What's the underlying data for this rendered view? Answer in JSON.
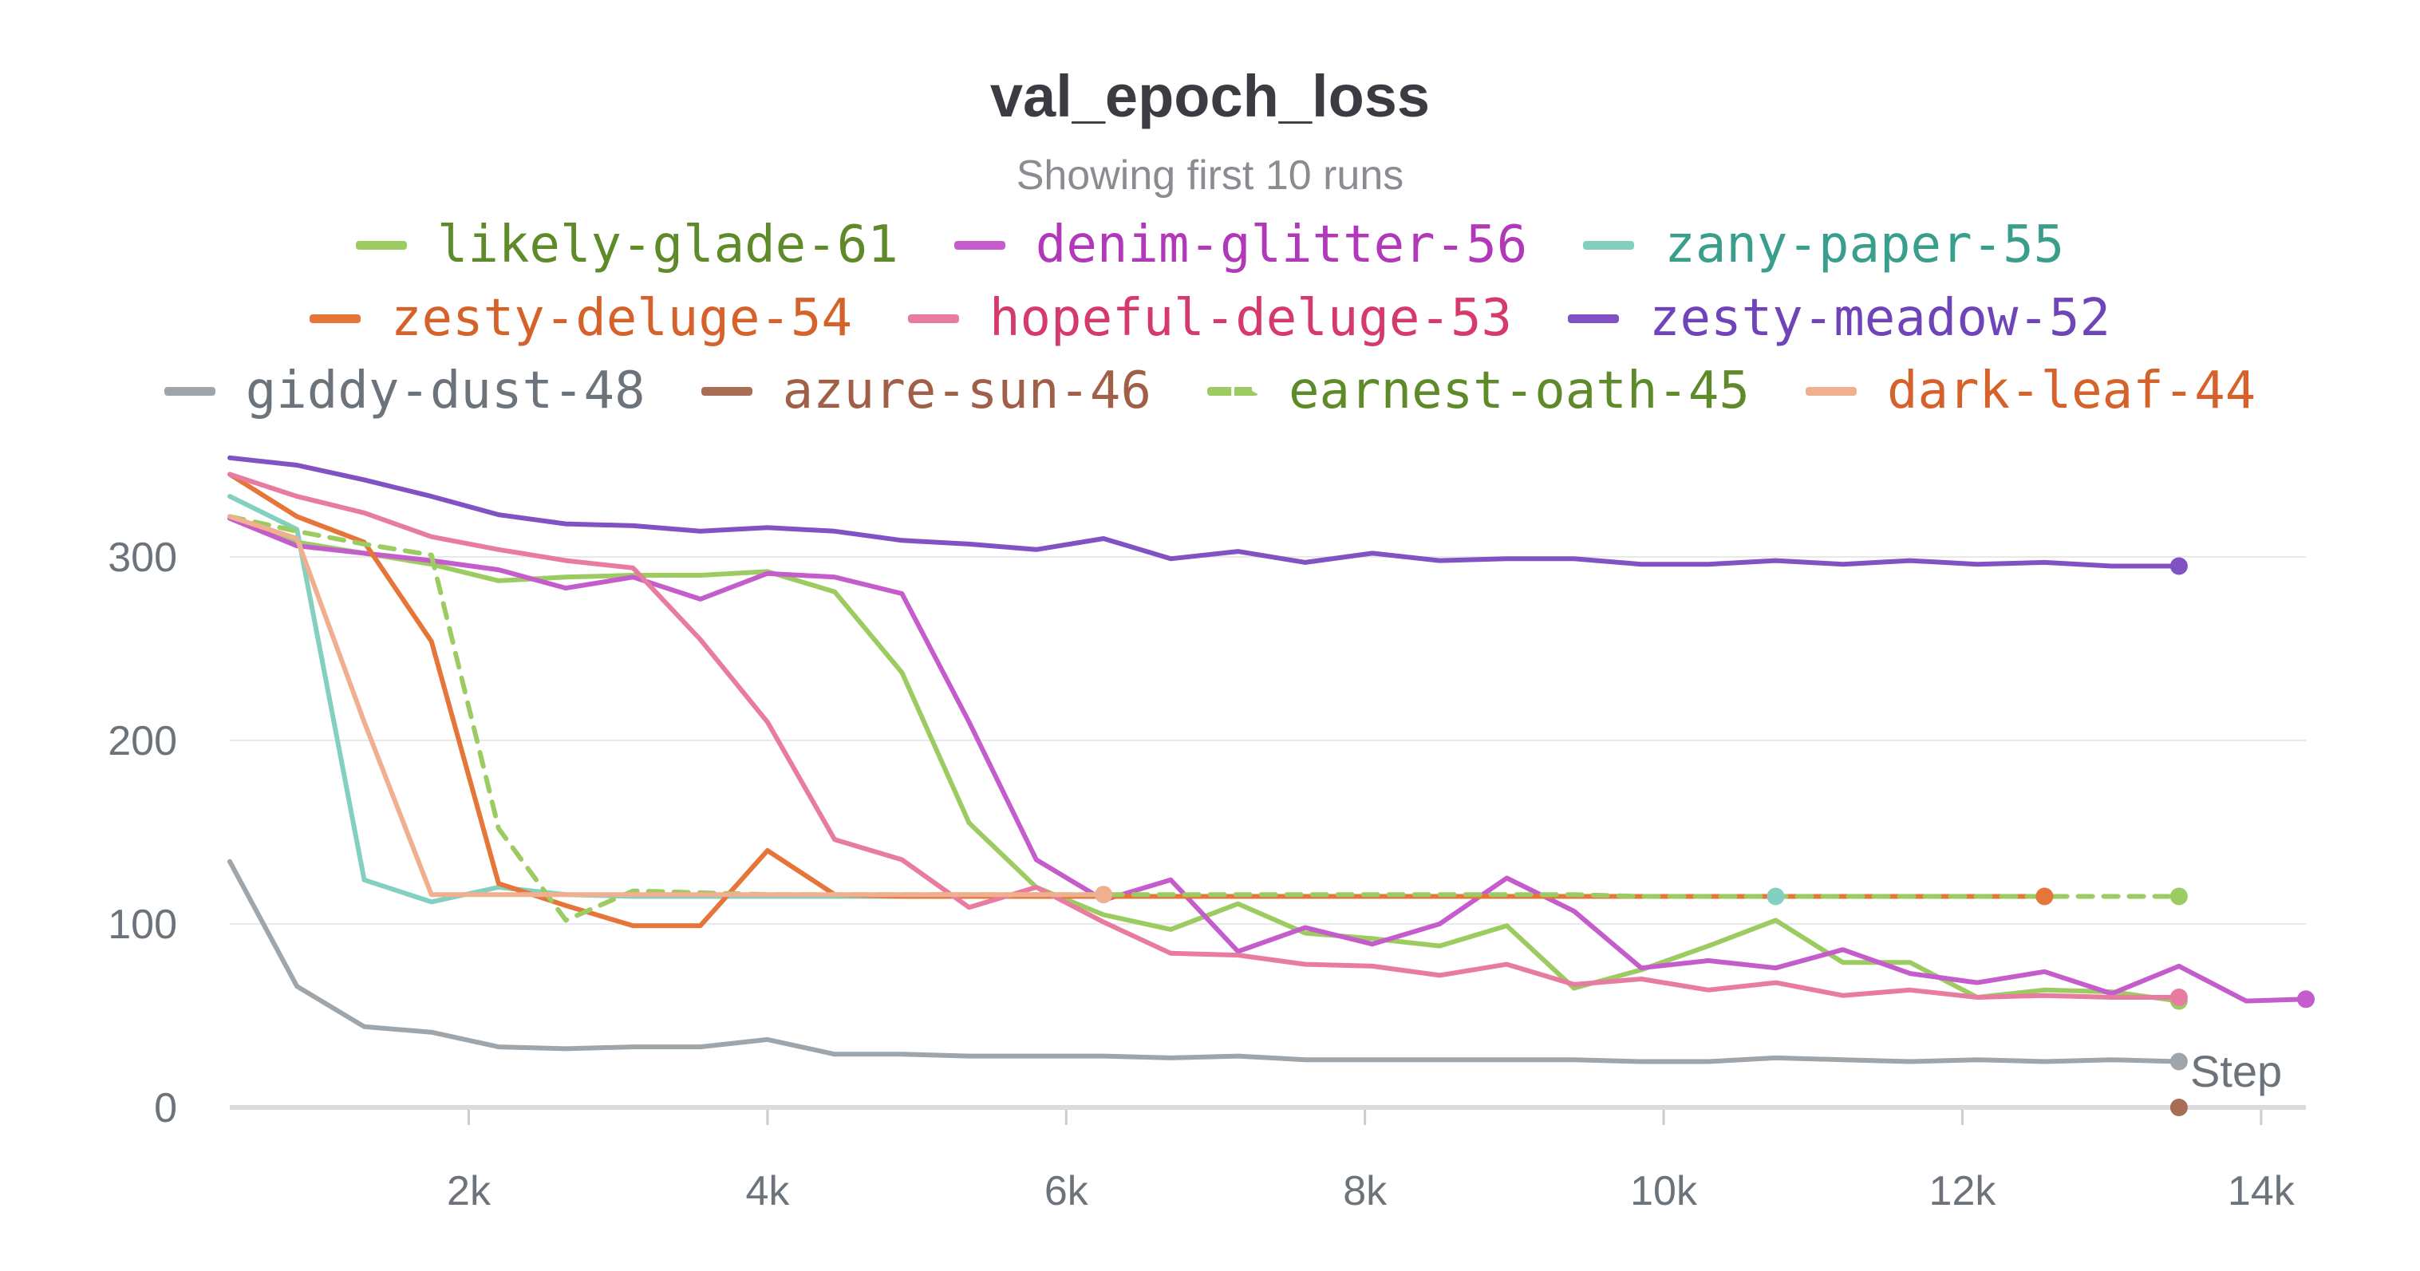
{
  "chart_data": {
    "type": "line",
    "title": "val_epoch_loss",
    "subtitle": "Showing first 10 runs",
    "xlabel": "Step",
    "ylabel": "",
    "xlim": [
      400,
      14300
    ],
    "ylim": [
      0,
      360
    ],
    "xticks": [
      2000,
      4000,
      6000,
      8000,
      10000,
      12000,
      14000
    ],
    "xtick_labels": [
      "2k",
      "4k",
      "6k",
      "8k",
      "10k",
      "12k",
      "14k"
    ],
    "yticks": [
      0,
      100,
      200,
      300
    ],
    "ytick_labels": [
      "0",
      "100",
      "200",
      "300"
    ],
    "grid": true,
    "legend_position": "top",
    "series": [
      {
        "name": "likely-glade-61",
        "color": "#9ccb62",
        "text_color": "#5f8a2a",
        "dashed": false,
        "x": [
          400,
          850,
          1300,
          1750,
          2200,
          2650,
          3100,
          3550,
          4000,
          4450,
          4900,
          5350,
          5800,
          6250,
          6700,
          7150,
          7600,
          8050,
          8500,
          8950,
          9400,
          9850,
          10300,
          10750,
          11200,
          11650,
          12100,
          12550,
          13000,
          13450
        ],
        "y": [
          322,
          308,
          302,
          296,
          287,
          289,
          290,
          290,
          292,
          281,
          237,
          155,
          120,
          105,
          97,
          111,
          95,
          92,
          88,
          99,
          65,
          75,
          88,
          102,
          79,
          79,
          60,
          64,
          63,
          58
        ]
      },
      {
        "name": "denim-glitter-56",
        "color": "#c55ccb",
        "text_color": "#b138b8",
        "dashed": false,
        "x": [
          400,
          850,
          1300,
          1750,
          2200,
          2650,
          3100,
          3550,
          4000,
          4450,
          4900,
          5350,
          5800,
          6250,
          6700,
          7150,
          7600,
          8050,
          8500,
          8950,
          9400,
          9850,
          10300,
          10750,
          11200,
          11650,
          12100,
          12550,
          13000,
          13450,
          13900,
          14300
        ],
        "y": [
          321,
          306,
          302,
          298,
          293,
          283,
          289,
          277,
          291,
          289,
          280,
          210,
          135,
          113,
          124,
          85,
          98,
          89,
          100,
          125,
          107,
          76,
          80,
          76,
          86,
          73,
          68,
          74,
          62,
          77,
          58,
          59
        ]
      },
      {
        "name": "zany-paper-55",
        "color": "#83d0c0",
        "text_color": "#3a9e8c",
        "dashed": false,
        "x": [
          400,
          850,
          1300,
          1750,
          2200,
          2650,
          3100,
          3550,
          4000,
          4450,
          4900,
          5350,
          5800,
          6250,
          6700,
          7150,
          7600,
          8050,
          8500,
          8950,
          9400,
          9850,
          10300,
          10750
        ],
        "y": [
          333,
          315,
          124,
          112,
          120,
          116,
          115,
          115,
          115,
          115,
          115,
          115,
          115,
          115,
          115,
          115,
          115,
          115,
          115,
          115,
          115,
          115,
          115,
          115
        ]
      },
      {
        "name": "zesty-deluge-54",
        "color": "#e6753a",
        "text_color": "#d5622a",
        "dashed": false,
        "x": [
          400,
          850,
          1300,
          1750,
          2200,
          2650,
          3100,
          3550,
          4000,
          4450,
          4900,
          5350,
          5800,
          6250,
          6700,
          7150,
          7600,
          8050,
          8500,
          8950,
          9400,
          9850,
          10300,
          10750,
          11200,
          11650,
          12100,
          12550
        ],
        "y": [
          345,
          322,
          308,
          254,
          122,
          110,
          99,
          99,
          140,
          116,
          115,
          115,
          115,
          115,
          115,
          115,
          115,
          115,
          115,
          115,
          115,
          115,
          115,
          115,
          115,
          115,
          115,
          115
        ]
      },
      {
        "name": "hopeful-deluge-53",
        "color": "#e87ba0",
        "text_color": "#d53a6a",
        "dashed": false,
        "x": [
          400,
          850,
          1300,
          1750,
          2200,
          2650,
          3100,
          3550,
          4000,
          4450,
          4900,
          5350,
          5800,
          6250,
          6700,
          7150,
          7600,
          8050,
          8500,
          8950,
          9400,
          9850,
          10300,
          10750,
          11200,
          11650,
          12100,
          12550,
          13000,
          13450
        ],
        "y": [
          345,
          333,
          324,
          311,
          304,
          298,
          294,
          255,
          210,
          146,
          135,
          109,
          120,
          101,
          84,
          83,
          78,
          77,
          72,
          78,
          67,
          70,
          64,
          68,
          61,
          64,
          60,
          61,
          60,
          60
        ]
      },
      {
        "name": "zesty-meadow-52",
        "color": "#8052c4",
        "text_color": "#6e44b8",
        "dashed": false,
        "x": [
          400,
          850,
          1300,
          1750,
          2200,
          2650,
          3100,
          3550,
          4000,
          4450,
          4900,
          5350,
          5800,
          6250,
          6700,
          7150,
          7600,
          8050,
          8500,
          8950,
          9400,
          9850,
          10300,
          10750,
          11200,
          11650,
          12100,
          12550,
          13000,
          13450
        ],
        "y": [
          354,
          350,
          342,
          333,
          323,
          318,
          317,
          314,
          316,
          314,
          309,
          307,
          304,
          310,
          299,
          303,
          297,
          302,
          298,
          299,
          299,
          296,
          296,
          298,
          296,
          298,
          296,
          297,
          295,
          295
        ]
      },
      {
        "name": "giddy-dust-48",
        "color": "#9ea5ab",
        "text_color": "#6c737a",
        "dashed": false,
        "x": [
          400,
          850,
          1300,
          1750,
          2200,
          2650,
          3100,
          3550,
          4000,
          4450,
          4900,
          5350,
          5800,
          6250,
          6700,
          7150,
          7600,
          8050,
          8500,
          8950,
          9400,
          9850,
          10300,
          10750,
          11200,
          11650,
          12100,
          12550,
          13000,
          13450
        ],
        "y": [
          134,
          66,
          44,
          41,
          33,
          32,
          33,
          33,
          37,
          29,
          29,
          28,
          28,
          28,
          27,
          28,
          26,
          26,
          26,
          26,
          26,
          25,
          25,
          27,
          26,
          25,
          26,
          25,
          26,
          25
        ]
      },
      {
        "name": "azure-sun-46",
        "color": "#a86d55",
        "text_color": "#a06048",
        "dashed": false,
        "x": [
          13450
        ],
        "y": [
          0
        ]
      },
      {
        "name": "earnest-oath-45",
        "color": "#9ccb62",
        "text_color": "#5f8a2a",
        "dashed": true,
        "x": [
          400,
          850,
          1300,
          1750,
          2200,
          2650,
          3100,
          3550,
          4000,
          4450,
          4900,
          5350,
          5800,
          6250,
          6700,
          7150,
          7600,
          8050,
          8500,
          8950,
          9400,
          9850,
          10300,
          10750,
          11200,
          11650,
          12100,
          12550,
          13000,
          13450
        ],
        "y": [
          322,
          314,
          307,
          301,
          152,
          102,
          118,
          117,
          116,
          116,
          116,
          116,
          116,
          116,
          116,
          116,
          116,
          116,
          116,
          116,
          116,
          115,
          115,
          115,
          115,
          115,
          115,
          115,
          115,
          115
        ]
      },
      {
        "name": "dark-leaf-44",
        "color": "#f0b090",
        "text_color": "#d5622a",
        "dashed": false,
        "x": [
          400,
          850,
          1300,
          1750,
          2200,
          2650,
          3100,
          3550,
          4000,
          4450,
          4900,
          5350,
          5800,
          6250
        ],
        "y": [
          322,
          310,
          210,
          116,
          116,
          116,
          116,
          116,
          116,
          116,
          116,
          116,
          116,
          116
        ]
      }
    ]
  }
}
